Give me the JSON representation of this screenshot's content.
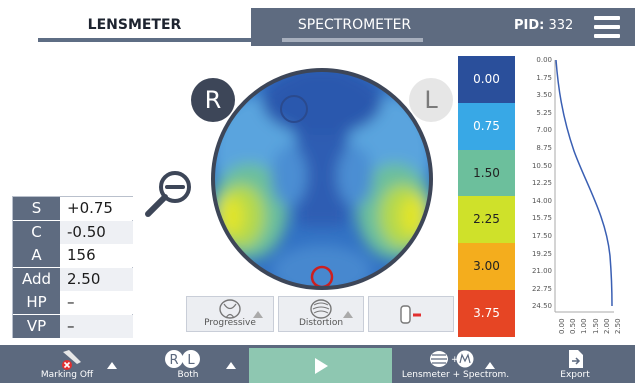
{
  "tabs": {
    "lensmeter": "LENSMETER",
    "spectrometer": "SPECTROMETER"
  },
  "pid": {
    "label": "PID:",
    "value": "332"
  },
  "badges": {
    "right": "R",
    "left": "L"
  },
  "measurements": [
    {
      "key": "S",
      "value": "+0.75"
    },
    {
      "key": "C",
      "value": "-0.50"
    },
    {
      "key": "A",
      "value": "156"
    },
    {
      "key": "Add",
      "value": "2.50"
    },
    {
      "key": "HP",
      "value": "–"
    },
    {
      "key": "VP",
      "value": "–"
    }
  ],
  "lens_options": {
    "progressive": "Progressive",
    "distortion": "Distortion"
  },
  "scale": [
    {
      "label": "0.00",
      "color": "#2a4f9b",
      "text_color": "#ffffff"
    },
    {
      "label": "0.75",
      "color": "#38a8e6",
      "text_color": "#ffffff"
    },
    {
      "label": "1.50",
      "color": "#6cbf9c",
      "text_color": "#222222"
    },
    {
      "label": "2.25",
      "color": "#cfe12a",
      "text_color": "#222222"
    },
    {
      "label": "3.00",
      "color": "#f4ad1d",
      "text_color": "#222222"
    },
    {
      "label": "3.75",
      "color": "#e64524",
      "text_color": "#ffffff"
    }
  ],
  "graph": {
    "y_ticks": [
      "0.00",
      "1.75",
      "3.50",
      "5.25",
      "7.00",
      "8.75",
      "10.50",
      "12.25",
      "14.00",
      "15.75",
      "17.50",
      "19.25",
      "21.00",
      "22.75",
      "24.50"
    ],
    "x_ticks": [
      "0.00",
      "0.50",
      "1.00",
      "1.50",
      "2.00",
      "2.50"
    ]
  },
  "toolbar": {
    "marking": "Marking Off",
    "eyes": "Both",
    "mode": "Lensmeter + Spectrom.",
    "export": "Export"
  },
  "colors": {
    "accent": "#5e6b80",
    "play": "#8ec7b1",
    "lens_ring": "#3d4658"
  }
}
